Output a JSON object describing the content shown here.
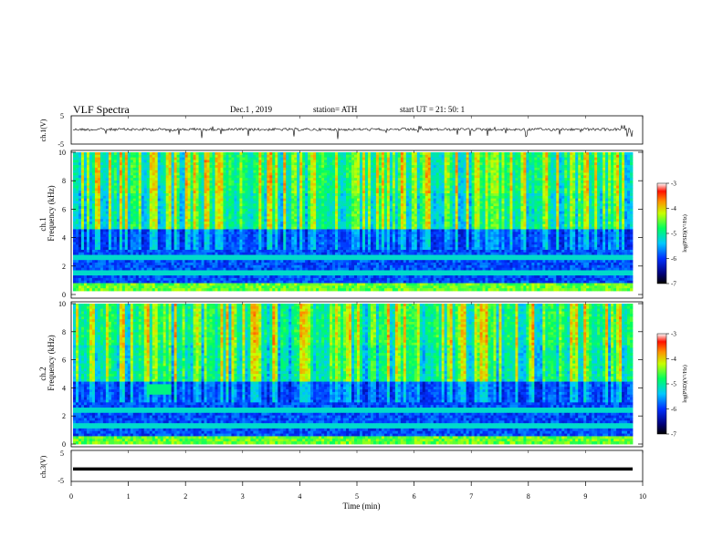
{
  "header": {
    "title": "VLF Spectra",
    "date": "Dec.1 , 2019",
    "station": "station= ATH",
    "start": "start UT = 21: 50: 1"
  },
  "chart_data": [
    {
      "name": "ch1-waveform",
      "type": "line",
      "ylabel": "ch.1(V)",
      "yticks": [
        "5",
        "-5"
      ],
      "ylim": [
        -5,
        5
      ],
      "xlim": [
        0,
        10
      ],
      "color": "#000000"
    },
    {
      "name": "ch1-spectrogram",
      "type": "heatmap",
      "ylabel_top": "ch.1",
      "ylabel": "Frequency (kHz)",
      "yticks": [
        "10",
        "8",
        "6",
        "4",
        "2",
        "0"
      ],
      "ylim": [
        0,
        10
      ],
      "xlim": [
        0,
        9.8
      ],
      "colorbar": {
        "label": "log(PSD)(V²/Hz)",
        "ticks": [
          "-3",
          "-4",
          "-5",
          "-6",
          "-7"
        ],
        "range": [
          -7,
          -3
        ]
      }
    },
    {
      "name": "ch2-spectrogram",
      "type": "heatmap",
      "ylabel_top": "ch.2",
      "ylabel": "Frequency (kHz)",
      "yticks": [
        "10",
        "8",
        "6",
        "4",
        "2",
        "0"
      ],
      "ylim": [
        0,
        10
      ],
      "xlim": [
        0,
        9.8
      ],
      "colorbar": {
        "label": "log(PSD)(V²/Hz)",
        "ticks": [
          "-3",
          "-4",
          "-5",
          "-6",
          "-7"
        ],
        "range": [
          -7,
          -3
        ]
      }
    },
    {
      "name": "ch3-waveform",
      "type": "line",
      "ylabel": "ch.3(V)",
      "yticks": [
        "5",
        "-5"
      ],
      "ylim": [
        -5,
        5
      ],
      "xlim": [
        0,
        10
      ],
      "level": -0.8,
      "color": "#000000"
    }
  ],
  "xaxis": {
    "label": "Time (min)",
    "ticks": [
      "0",
      "1",
      "2",
      "3",
      "4",
      "5",
      "6",
      "7",
      "8",
      "9",
      "10"
    ],
    "range": [
      0,
      10
    ]
  }
}
